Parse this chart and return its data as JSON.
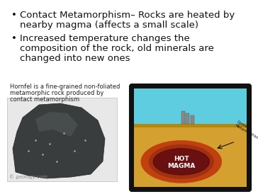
{
  "slide_bg": "#ffffff",
  "bullet1_line1": "Contact Metamorphism– Rocks are heated by",
  "bullet1_line2": "nearby magma (affects a small scale)",
  "bullet2_line1": "Increased temperature changes the",
  "bullet2_line2": "composition of the rock, old minerals are",
  "bullet2_line3": "changed into new ones",
  "caption_line1": "Hornfel is a fine-grained non-foliated",
  "caption_line2": "metamorphic rock produced by",
  "caption_line3": "contact metamorphism",
  "watermark": "© geology.com",
  "text_color": "#111111",
  "caption_color": "#222222",
  "font_size_bullet": 9.5,
  "font_size_caption": 6.0,
  "font_size_watermark": 5.0
}
